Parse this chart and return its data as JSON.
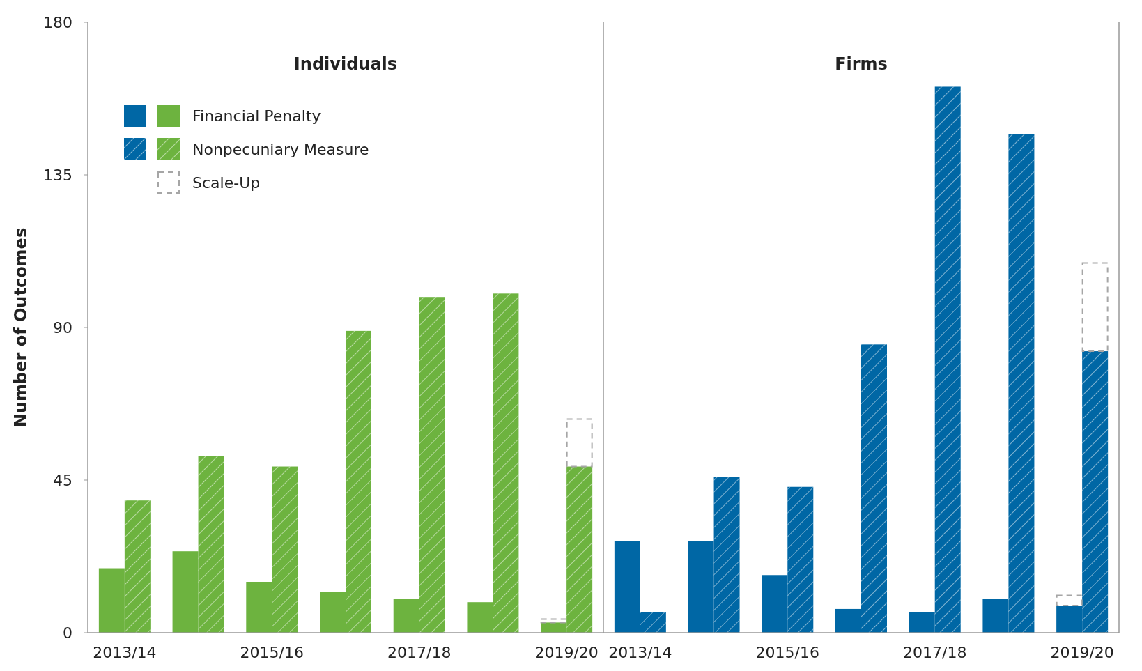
{
  "chart_data": [
    {
      "type": "bar",
      "title": "Individuals",
      "ylabel": "Number of Outcomes",
      "categories": [
        "2013/14",
        null,
        "2015/16",
        null,
        "2017/18",
        null,
        "2019/20"
      ],
      "ylim": [
        0,
        180
      ],
      "yticks": [
        0,
        45,
        90,
        135,
        180
      ],
      "legend": "top left",
      "tick_labels": "xy",
      "series": [
        {
          "name": "Financial Penalty",
          "color": "#6db33f",
          "values": [
            19,
            24,
            15,
            12,
            10,
            9,
            3
          ]
        },
        {
          "name": "Nonpecuniary Measure",
          "color": "#6db33f",
          "values": [
            39,
            52,
            49,
            89,
            99,
            100,
            49
          ]
        },
        {
          "name": "Scale-Up",
          "color": "#a6a6a6",
          "line_style": "dashed",
          "base": [
            null,
            null,
            null,
            null,
            null,
            null,
            3
          ],
          "values": [
            null,
            null,
            null,
            null,
            null,
            null,
            1
          ]
        },
        {
          "color": "#a6a6a6",
          "line_style": "dashed",
          "base": [
            null,
            null,
            null,
            null,
            null,
            null,
            49
          ],
          "values": [
            null,
            null,
            null,
            null,
            null,
            null,
            14
          ]
        }
      ]
    },
    {
      "type": "bar",
      "title": "Firms",
      "categories": [
        "2013/14",
        null,
        "2015/16",
        null,
        "2017/18",
        null,
        "2019/20"
      ],
      "ylim": [
        0,
        180
      ],
      "yticks": [
        0,
        45,
        90,
        135,
        180
      ],
      "tick_labels": "x",
      "series": [
        {
          "color": "#0067a5",
          "values": [
            27,
            27,
            17,
            7,
            6,
            10,
            8
          ]
        },
        {
          "color": "#0067a5",
          "values": [
            6,
            46,
            43,
            85,
            161,
            147,
            83
          ]
        },
        {
          "color": "#a6a6a6",
          "line_style": "dashed",
          "base": [
            null,
            null,
            null,
            null,
            null,
            null,
            8
          ],
          "values": [
            null,
            null,
            null,
            null,
            null,
            null,
            3
          ]
        },
        {
          "color": "#a6a6a6",
          "line_style": "dashed",
          "base": [
            null,
            null,
            null,
            null,
            null,
            null,
            83
          ],
          "values": [
            null,
            null,
            null,
            null,
            null,
            null,
            26
          ]
        }
      ]
    }
  ]
}
